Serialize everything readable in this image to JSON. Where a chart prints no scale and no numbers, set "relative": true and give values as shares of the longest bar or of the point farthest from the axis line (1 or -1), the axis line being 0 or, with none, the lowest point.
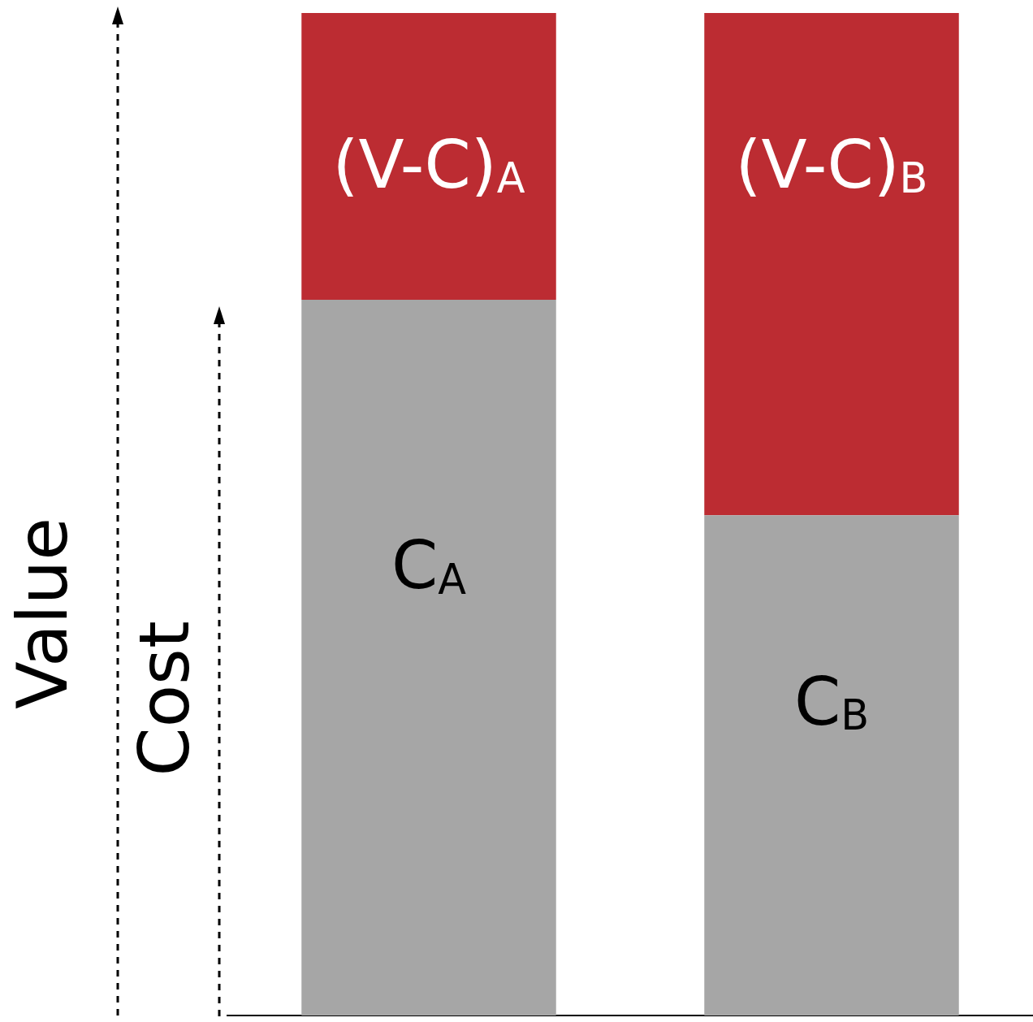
{
  "chart_data": {
    "type": "bar",
    "stacked": true,
    "relative": true,
    "categories": [
      null,
      null
    ],
    "ylabel": "Value",
    "annotations": [
      "Cost",
      "C$_{A}$",
      "C$_{B}$",
      "(V-C)$_{A}$",
      "(V-C)$_{B}$"
    ],
    "series": [
      {
        "color": "#a6a6a6",
        "values": [
          0.714,
          0.499
        ]
      },
      {
        "color": "#bc2c32",
        "values": [
          0.286,
          0.501
        ]
      }
    ]
  }
}
